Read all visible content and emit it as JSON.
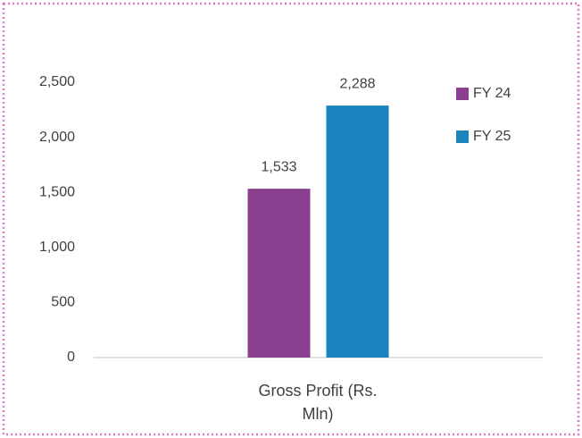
{
  "chart_data": {
    "type": "bar",
    "categories": [
      "Gross Profit (Rs. Mln)"
    ],
    "series": [
      {
        "name": "FY 24",
        "color": "#8b3f8f",
        "values": [
          1533
        ],
        "value_labels": [
          "1,533"
        ]
      },
      {
        "name": "FY 25",
        "color": "#1a84be",
        "values": [
          2288
        ],
        "value_labels": [
          "2,288"
        ]
      }
    ],
    "ylim": [
      0,
      2500
    ],
    "yticks": [
      0,
      500,
      {
        "value": 1000,
        "label": "1,000"
      },
      {
        "value": 1500,
        "label": "1,500"
      },
      {
        "value": 2000,
        "label": "2,000"
      },
      {
        "value": 2500,
        "label": "2,500"
      }
    ],
    "grid": false,
    "legend": "right"
  }
}
